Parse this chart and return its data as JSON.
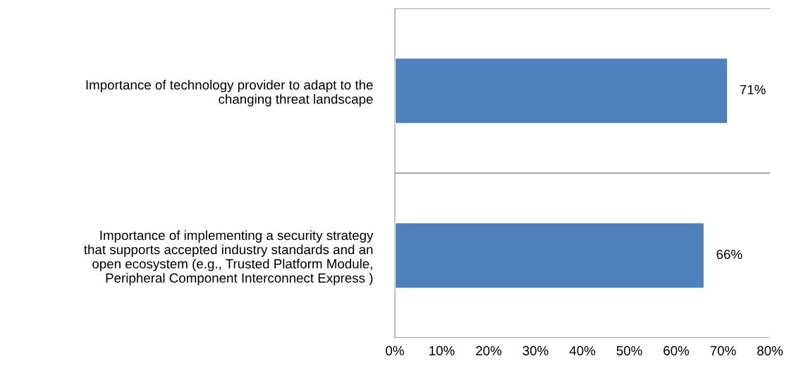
{
  "chart_data": {
    "type": "bar",
    "orientation": "horizontal",
    "categories": [
      "Importance of technology provider to adapt to the\nchanging threat landscape",
      "Importance of implementing a security strategy\nthat supports accepted industry standards and an\nopen ecosystem (e.g., Trusted Platform Module,\nPeripheral Component Interconnect Express )"
    ],
    "values": [
      71,
      66
    ],
    "color": "#4f81bd",
    "value_labels": [
      "71%",
      "66%"
    ],
    "xlim": [
      0,
      80
    ],
    "xticks": [
      {
        "value": 0,
        "label": "0%"
      },
      {
        "value": 10,
        "label": "10%"
      },
      {
        "value": 20,
        "label": "20%"
      },
      {
        "value": 30,
        "label": "30%"
      },
      {
        "value": 40,
        "label": "40%"
      },
      {
        "value": 50,
        "label": "50%"
      },
      {
        "value": 60,
        "label": "60%"
      },
      {
        "value": 70,
        "label": "70%"
      },
      {
        "value": 80,
        "label": "80%"
      }
    ],
    "grid": "y"
  }
}
